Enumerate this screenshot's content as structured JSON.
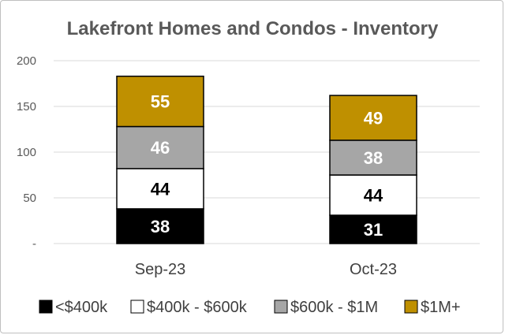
{
  "chart_data": {
    "type": "bar",
    "stacked": true,
    "title": "Lakefront Homes and Condos - Inventory",
    "categories": [
      "Sep-23",
      "Oct-23"
    ],
    "ylim": [
      0,
      200
    ],
    "yticks": [
      {
        "value": 0,
        "label": "-"
      },
      {
        "value": 50,
        "label": "50"
      },
      {
        "value": 100,
        "label": "100"
      },
      {
        "value": 150,
        "label": "150"
      },
      {
        "value": 200,
        "label": "200"
      }
    ],
    "grid": true,
    "legend_position": "bottom",
    "series": [
      {
        "name": "<$400k",
        "values": [
          38,
          31
        ],
        "color": "#000000",
        "label_color": "#ffffff"
      },
      {
        "name": "$400k - $600k",
        "values": [
          44,
          44
        ],
        "color": "#ffffff",
        "label_color": "#000000"
      },
      {
        "name": "$600k - $1M",
        "values": [
          46,
          38
        ],
        "color": "#a6a6a6",
        "label_color": "#ffffff"
      },
      {
        "name": "$1M+",
        "values": [
          55,
          49
        ],
        "color": "#bf9000",
        "label_color": "#ffffff"
      }
    ]
  }
}
